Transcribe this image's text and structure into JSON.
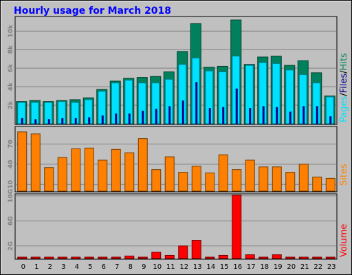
{
  "title": "Hourly usage for March 2018",
  "colors": {
    "background": "#c0c0c0",
    "hits": "#00805c",
    "files": "#00e0ff",
    "pages": "#00008b",
    "sites": "#ff8000",
    "volume": "#ff0000",
    "title": "#0000ff"
  },
  "chart_data": [
    {
      "type": "bar",
      "categories": [
        "0",
        "1",
        "2",
        "3",
        "4",
        "5",
        "6",
        "7",
        "8",
        "9",
        "10",
        "11",
        "12",
        "13",
        "14",
        "15",
        "16",
        "17",
        "18",
        "19",
        "20",
        "21",
        "22",
        "23"
      ],
      "y_tick_labels": [
        "2k",
        "4k",
        "6k",
        "8k",
        "10k"
      ],
      "ylim": [
        0,
        11500
      ],
      "grid": true,
      "series": [
        {
          "name": "Hits",
          "values": [
            2400,
            2500,
            2400,
            2500,
            2600,
            2800,
            3700,
            4600,
            4900,
            5000,
            5100,
            5600,
            7800,
            10800,
            6100,
            6200,
            11200,
            6400,
            7200,
            7300,
            6300,
            6800,
            5500,
            3000
          ]
        },
        {
          "name": "Files",
          "values": [
            2300,
            2300,
            2300,
            2400,
            2300,
            2600,
            3500,
            4400,
            4700,
            4400,
            4400,
            4800,
            6400,
            7100,
            5700,
            5600,
            7300,
            6300,
            6600,
            6500,
            5800,
            5300,
            4400,
            2900
          ]
        },
        {
          "name": "Pages",
          "values": [
            600,
            500,
            500,
            600,
            600,
            700,
            900,
            1100,
            1100,
            1400,
            1600,
            1900,
            2500,
            4500,
            1700,
            1800,
            3800,
            1700,
            1900,
            1800,
            1300,
            1900,
            1900,
            800
          ]
        }
      ],
      "legend_labels": [
        "Pages",
        "/",
        "Files",
        "/",
        "Hits"
      ]
    },
    {
      "type": "bar",
      "categories": [
        "0",
        "1",
        "2",
        "3",
        "4",
        "5",
        "6",
        "7",
        "8",
        "9",
        "10",
        "11",
        "12",
        "13",
        "14",
        "15",
        "16",
        "17",
        "18",
        "19",
        "20",
        "21",
        "22",
        "23"
      ],
      "y_tick_labels": [
        "10",
        "40",
        "70"
      ],
      "ylim": [
        0,
        95
      ],
      "grid": true,
      "series": [
        {
          "name": "Sites",
          "values": [
            88,
            85,
            35,
            50,
            63,
            64,
            46,
            62,
            57,
            78,
            32,
            51,
            28,
            37,
            27,
            54,
            32,
            46,
            36,
            36,
            28,
            40,
            21,
            19
          ]
        }
      ],
      "legend_labels": [
        "Sites"
      ]
    },
    {
      "type": "bar",
      "categories": [
        "0",
        "1",
        "2",
        "3",
        "4",
        "5",
        "6",
        "7",
        "8",
        "9",
        "10",
        "11",
        "12",
        "13",
        "14",
        "15",
        "16",
        "17",
        "18",
        "19",
        "20",
        "21",
        "22",
        "23"
      ],
      "y_tick_labels": [
        "2G",
        "6G",
        "10G"
      ],
      "ylim": [
        0,
        10.2
      ],
      "grid": true,
      "series": [
        {
          "name": "Volume",
          "values": [
            0.08,
            0.08,
            0.08,
            0.08,
            0.08,
            0.08,
            0.08,
            0.08,
            0.4,
            0.08,
            1.0,
            0.5,
            2.0,
            2.9,
            0.08,
            0.5,
            10.1,
            0.6,
            0.1,
            0.6,
            0.08,
            0.08,
            0.08,
            0.08
          ]
        }
      ],
      "legend_labels": [
        "Volume"
      ]
    }
  ]
}
